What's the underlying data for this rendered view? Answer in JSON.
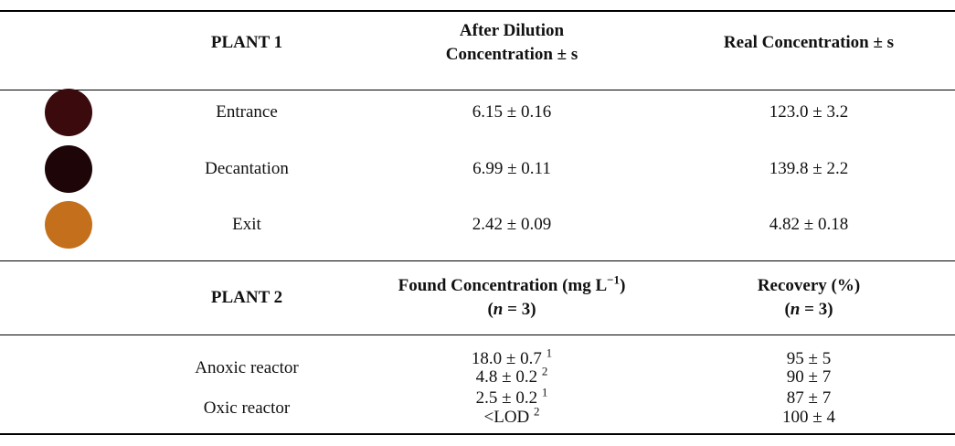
{
  "plant1": {
    "headers": [
      [
        [
          {
            "text": "PLANT 1"
          }
        ]
      ],
      [
        [
          {
            "text": "After Dilution"
          }
        ],
        [
          {
            "text": "Concentration ± s"
          }
        ]
      ],
      [
        [
          {
            "text": "Real Concentration ± s"
          }
        ]
      ]
    ],
    "rows": [
      {
        "color": "#3b0a0d",
        "label": "Entrance",
        "after": "6.15 ± 0.16",
        "real": "123.0 ± 3.2"
      },
      {
        "color": "#1e0508",
        "label": "Decantation",
        "after": "6.99 ± 0.11",
        "real": "139.8 ± 2.2"
      },
      {
        "color": "#c46f1c",
        "label": "Exit",
        "after": "2.42 ± 0.09",
        "real": "4.82 ± 0.18"
      }
    ]
  },
  "plant2": {
    "headers": [
      [
        [
          {
            "text": "PLANT 2"
          }
        ]
      ],
      [
        [
          {
            "text": "Found Concentration (mg L"
          },
          {
            "text": "−1",
            "sup": true
          },
          {
            "text": ")"
          }
        ],
        [
          {
            "text": "("
          },
          {
            "text": "n",
            "italic": true
          },
          {
            "text": " = 3)"
          }
        ]
      ],
      [
        [
          {
            "text": "Recovery (%)"
          }
        ],
        [
          {
            "text": "("
          },
          {
            "text": "n",
            "italic": true
          },
          {
            "text": " = 3)"
          }
        ]
      ]
    ],
    "groups": [
      {
        "label": "Anoxic reactor",
        "rows": [
          {
            "found": "18.0 ± 0.7",
            "note": "1",
            "recovery": "95 ± 5"
          },
          {
            "found": "4.8 ± 0.2",
            "note": "2",
            "recovery": "90 ± 7"
          }
        ]
      },
      {
        "label": "Oxic reactor",
        "rows": [
          {
            "found": "2.5 ± 0.2",
            "note": "1",
            "recovery": "87 ± 7"
          },
          {
            "found": "<LOD",
            "note": "2",
            "recovery": "100 ± 4"
          }
        ]
      }
    ]
  }
}
